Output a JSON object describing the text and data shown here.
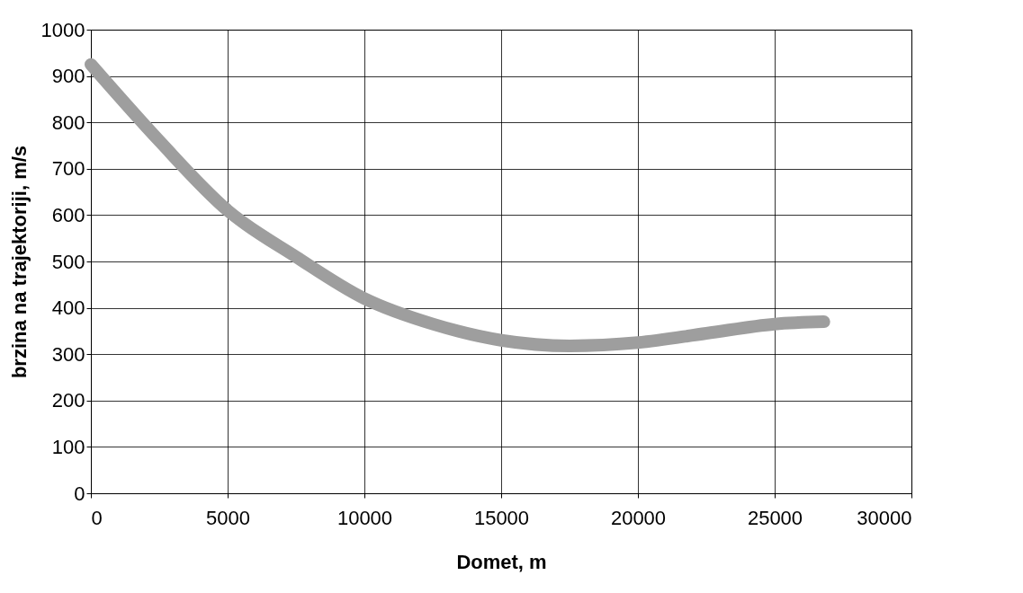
{
  "chart_data": {
    "type": "line",
    "xlabel": "Domet, m",
    "ylabel": "brzina na trajektoriji, m/s",
    "x": [
      0,
      2500,
      5000,
      7500,
      10000,
      12500,
      15000,
      17500,
      20000,
      22500,
      25000,
      26800
    ],
    "series": [
      {
        "color": "#9e9e9e",
        "values": [
          925,
          760,
          610,
          510,
          420,
          365,
          330,
          318,
          325,
          345,
          365,
          370
        ]
      }
    ],
    "xlim": [
      0,
      30000
    ],
    "xticks": [
      0,
      5000,
      10000,
      15000,
      20000,
      25000,
      30000
    ],
    "ylim": [
      0,
      1000
    ],
    "yticks": [
      0,
      100,
      200,
      300,
      400,
      500,
      600,
      700,
      800,
      900,
      1000
    ],
    "grid": true,
    "line_style": "solid"
  }
}
